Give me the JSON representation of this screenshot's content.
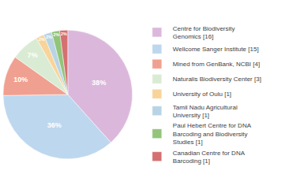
{
  "chart_data": {
    "type": "pie",
    "categories": [
      "Centre for Biodiversity\nGenomics [16]",
      "Wellcome Sanger Institute [15]",
      "Mined from GenBank, NCBI [4]",
      "Naturalis Biodiversity Center [3]",
      "University of Oulu [1]",
      "Tamil Nadu Agricultural\nUniversity [1]",
      "Paul Hebert Centre for DNA\nBarcoding and Biodiversity\nStudies [1]",
      "Canadian Centre for DNA\nBarcoding [1]"
    ],
    "values": [
      38,
      36,
      10,
      7,
      2,
      2,
      2,
      2
    ],
    "value_labels": [
      "38%",
      "36%",
      "10%",
      "7%",
      "2%",
      "2%",
      "2%",
      "2%"
    ],
    "colors": [
      "#dbb8db",
      "#bdd7ee",
      "#f0a090",
      "#daebd4",
      "#f8d49a",
      "#b8d4e4",
      "#92c47a",
      "#d47070"
    ],
    "data_labels": true,
    "legend": "right"
  }
}
